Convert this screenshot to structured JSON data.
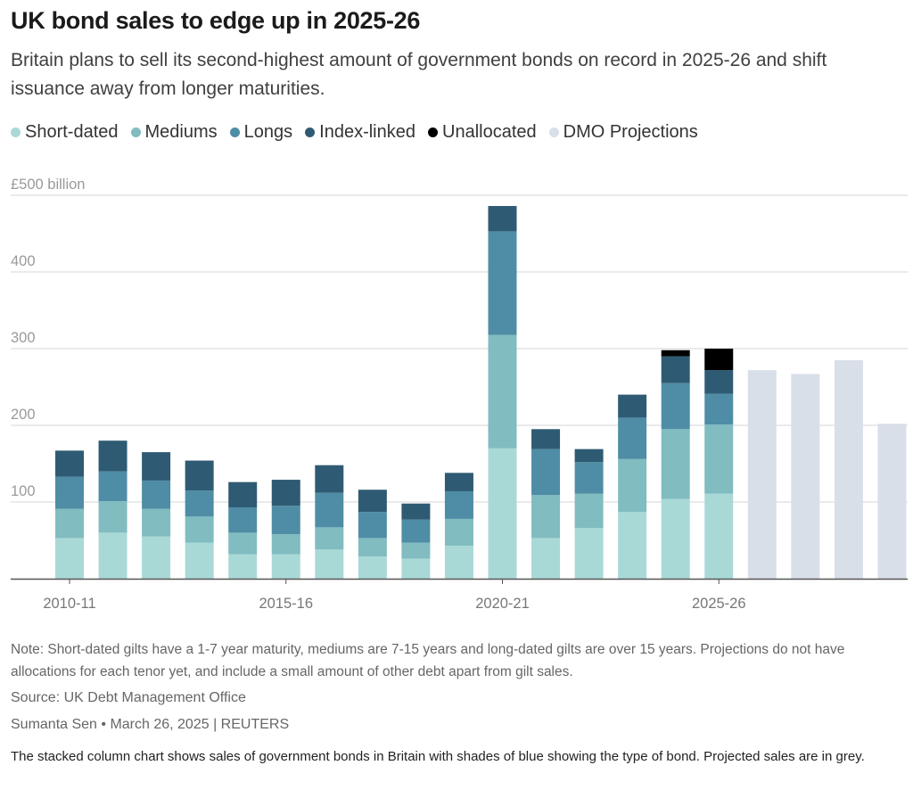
{
  "header": {
    "title": "UK bond sales to edge up in 2025-26",
    "subtitle": "Britain plans to sell its second-highest amount of government bonds on record in 2025-26 and shift issuance away from longer maturities."
  },
  "legend": [
    {
      "label": "Short-dated",
      "color": "#a9d9d7"
    },
    {
      "label": "Mediums",
      "color": "#80bcc0"
    },
    {
      "label": "Longs",
      "color": "#4f8da6"
    },
    {
      "label": "Index-linked",
      "color": "#2e5b73"
    },
    {
      "label": "Unallocated",
      "color": "#000000"
    },
    {
      "label": "DMO Projections",
      "color": "#d9dfe8"
    }
  ],
  "footer": {
    "note": "Note: Short-dated gilts have a 1-7 year maturity, mediums are 7-15 years and long-dated gilts are over 15 years. Projections do not have allocations for each tenor yet, and include a small amount of other debt apart from gilt sales.",
    "source": "Source: UK Debt Management Office",
    "byline": "Sumanta Sen • March 26, 2025 | REUTERS",
    "description": "The stacked column chart shows sales of government bonds in Britain with shades of blue showing the type of bond. Projected sales are in grey."
  },
  "chart_data": {
    "type": "bar",
    "stacked": true,
    "y_unit_label": "£500 billion",
    "y_ticks": [
      "100",
      "200",
      "300",
      "400"
    ],
    "ylim": [
      0,
      500
    ],
    "x_tick_labels": [
      "2010-11",
      "2015-16",
      "2020-21",
      "2025-26"
    ],
    "x_tick_category_index": [
      0,
      5,
      10,
      15
    ],
    "categories": [
      "2010-11",
      "2011-12",
      "2012-13",
      "2013-14",
      "2014-15",
      "2015-16",
      "2016-17",
      "2017-18",
      "2018-19",
      "2019-20",
      "2020-21",
      "2021-22",
      "2022-23",
      "2023-24",
      "2024-25",
      "2025-26",
      "2026-27",
      "2027-28",
      "2028-29",
      "2029-30"
    ],
    "series": [
      {
        "name": "Short-dated",
        "color": "#a9d9d7",
        "values": [
          53,
          60,
          55,
          47,
          32,
          32,
          38,
          29,
          26,
          43,
          170,
          53,
          66,
          87,
          104,
          111,
          0,
          0,
          0,
          0
        ]
      },
      {
        "name": "Mediums",
        "color": "#80bcc0",
        "values": [
          38,
          41,
          36,
          34,
          28,
          26,
          29,
          24,
          21,
          35,
          148,
          56,
          45,
          69,
          91,
          90,
          0,
          0,
          0,
          0
        ]
      },
      {
        "name": "Longs",
        "color": "#4f8da6",
        "values": [
          42,
          39,
          37,
          34,
          33,
          37,
          45,
          34,
          30,
          36,
          135,
          60,
          41,
          54,
          60,
          40,
          0,
          0,
          0,
          0
        ]
      },
      {
        "name": "Index-linked",
        "color": "#2e5b73",
        "values": [
          34,
          40,
          37,
          39,
          33,
          34,
          36,
          29,
          21,
          24,
          33,
          26,
          17,
          30,
          35,
          31,
          0,
          0,
          0,
          0
        ]
      },
      {
        "name": "Unallocated",
        "color": "#000000",
        "values": [
          0,
          0,
          0,
          0,
          0,
          0,
          0,
          0,
          0,
          0,
          0,
          0,
          0,
          0,
          8,
          28,
          0,
          0,
          0,
          0
        ]
      },
      {
        "name": "DMO Projections",
        "color": "#d9dfe8",
        "values": [
          0,
          0,
          0,
          0,
          0,
          0,
          0,
          0,
          0,
          0,
          0,
          0,
          0,
          0,
          0,
          0,
          272,
          267,
          285,
          202
        ]
      }
    ]
  }
}
